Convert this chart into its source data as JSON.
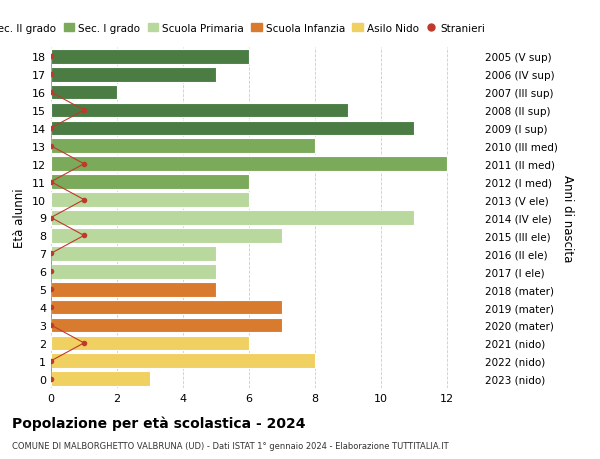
{
  "ages": [
    18,
    17,
    16,
    15,
    14,
    13,
    12,
    11,
    10,
    9,
    8,
    7,
    6,
    5,
    4,
    3,
    2,
    1,
    0
  ],
  "years": [
    "2005 (V sup)",
    "2006 (IV sup)",
    "2007 (III sup)",
    "2008 (II sup)",
    "2009 (I sup)",
    "2010 (III med)",
    "2011 (II med)",
    "2012 (I med)",
    "2013 (V ele)",
    "2014 (IV ele)",
    "2015 (III ele)",
    "2016 (II ele)",
    "2017 (I ele)",
    "2018 (mater)",
    "2019 (mater)",
    "2020 (mater)",
    "2021 (nido)",
    "2022 (nido)",
    "2023 (nido)"
  ],
  "bar_values": [
    6,
    5,
    2,
    9,
    11,
    8,
    12,
    6,
    6,
    11,
    7,
    5,
    5,
    5,
    7,
    7,
    6,
    8,
    3
  ],
  "bar_colors": [
    "#4a7c44",
    "#4a7c44",
    "#4a7c44",
    "#4a7c44",
    "#4a7c44",
    "#7aaa5a",
    "#7aaa5a",
    "#7aaa5a",
    "#b8d89e",
    "#b8d89e",
    "#b8d89e",
    "#b8d89e",
    "#b8d89e",
    "#d97b2e",
    "#d97b2e",
    "#d97b2e",
    "#f0d060",
    "#f0d060",
    "#f0d060"
  ],
  "stranieri_x": [
    0,
    0,
    0,
    1,
    0,
    0,
    1,
    0,
    1,
    0,
    1,
    0,
    0,
    0,
    0,
    0,
    1,
    0,
    0
  ],
  "legend_labels": [
    "Sec. II grado",
    "Sec. I grado",
    "Scuola Primaria",
    "Scuola Infanzia",
    "Asilo Nido",
    "Stranieri"
  ],
  "legend_colors": [
    "#4a7c44",
    "#7aaa5a",
    "#b8d89e",
    "#d97b2e",
    "#f0d060",
    "#c0392b"
  ],
  "title": "Popolazione per età scolastica - 2024",
  "subtitle": "COMUNE DI MALBORGHETTO VALBRUNA (UD) - Dati ISTAT 1° gennaio 2024 - Elaborazione TUTTITALIA.IT",
  "ylabel": "Età alunni",
  "right_label": "Anni di nascita",
  "xlabel_vals": [
    0,
    2,
    4,
    6,
    8,
    10,
    12
  ],
  "xlim": [
    0,
    13
  ],
  "bg_color": "#ffffff",
  "grid_color": "#cccccc",
  "stranieri_dot_color": "#c0392b",
  "stranieri_line_color": "#c0392b"
}
